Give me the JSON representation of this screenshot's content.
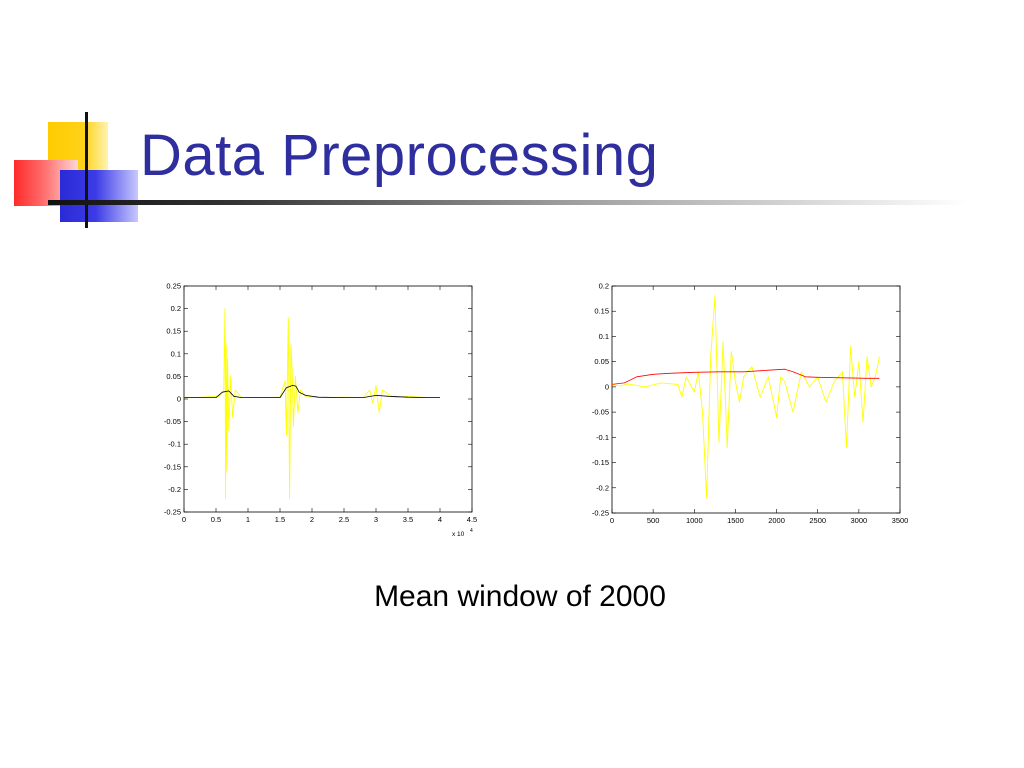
{
  "slide": {
    "title": "Data Preprocessing",
    "caption": "Mean window of 2000"
  },
  "chart_data": [
    {
      "type": "line",
      "xlim": [
        0,
        45000
      ],
      "ylim": [
        -0.25,
        0.25
      ],
      "x_tick_labels": [
        "0",
        "0.5",
        "1",
        "1.5",
        "2",
        "2.5",
        "3",
        "3.5",
        "4",
        "4.5"
      ],
      "x_tick_values": [
        0,
        5000,
        10000,
        15000,
        20000,
        25000,
        30000,
        35000,
        40000,
        45000
      ],
      "x_exponent_label": "x 10",
      "x_exponent_power": "4",
      "y_tick_labels": [
        "0.25",
        "0.2",
        "0.15",
        "0.1",
        "0.05",
        "0",
        "-0.05",
        "-0.1",
        "-0.15",
        "-0.2",
        "-0.25"
      ],
      "y_tick_values": [
        0.25,
        0.2,
        0.15,
        0.1,
        0.05,
        0,
        -0.05,
        -0.1,
        -0.15,
        -0.2,
        -0.25
      ],
      "grid": false,
      "series": [
        {
          "color": "#ffff00",
          "x": [
            0,
            2000,
            4000,
            5500,
            6200,
            6400,
            6500,
            6600,
            6700,
            6800,
            7000,
            7300,
            7600,
            8000,
            9000,
            12000,
            15000,
            15800,
            16000,
            16300,
            16500,
            16700,
            16900,
            17100,
            17400,
            17800,
            18200,
            19000,
            21000,
            25000,
            28000,
            29000,
            29500,
            30000,
            30500,
            31000,
            32000,
            33000,
            35000,
            38000,
            40000
          ],
          "y": [
            0.004,
            0.003,
            0.005,
            0.006,
            0.02,
            0.2,
            -0.22,
            0.12,
            -0.16,
            0.09,
            -0.07,
            0.05,
            -0.04,
            0.02,
            0.003,
            0.003,
            0.004,
            0.04,
            -0.08,
            0.18,
            -0.22,
            0.12,
            0.06,
            -0.06,
            0.05,
            -0.03,
            0.02,
            0.005,
            0.003,
            0.004,
            0.003,
            0.02,
            -0.01,
            0.03,
            -0.03,
            0.02,
            0.01,
            0.003,
            0.006,
            0.003,
            0.003
          ]
        },
        {
          "color": "#000000",
          "x": [
            0,
            5000,
            6000,
            7000,
            7800,
            9000,
            12000,
            15000,
            16000,
            17000,
            17500,
            18000,
            19000,
            21000,
            25000,
            28000,
            30000,
            32000,
            35000,
            38000,
            40000
          ],
          "y": [
            0.003,
            0.003,
            0.015,
            0.018,
            0.006,
            0.003,
            0.003,
            0.003,
            0.025,
            0.03,
            0.028,
            0.015,
            0.008,
            0.004,
            0.003,
            0.003,
            0.008,
            0.006,
            0.004,
            0.003,
            0.003
          ]
        }
      ]
    },
    {
      "type": "line",
      "xlim": [
        0,
        3500
      ],
      "ylim": [
        -0.25,
        0.2
      ],
      "x_tick_labels": [
        "0",
        "500",
        "1000",
        "1500",
        "2000",
        "2500",
        "3000",
        "3500"
      ],
      "x_tick_values": [
        0,
        500,
        1000,
        1500,
        2000,
        2500,
        3000,
        3500
      ],
      "y_tick_labels": [
        "0.2",
        "0.15",
        "0.1",
        "0.05",
        "0",
        "-0.05",
        "-0.1",
        "-0.15",
        "-0.2",
        "-0.25"
      ],
      "y_tick_values": [
        0.2,
        0.15,
        0.1,
        0.05,
        0,
        -0.05,
        -0.1,
        -0.15,
        -0.2,
        -0.25
      ],
      "grid": false,
      "series": [
        {
          "color": "#ffff00",
          "x": [
            0,
            100,
            200,
            400,
            600,
            800,
            850,
            900,
            1000,
            1050,
            1100,
            1150,
            1200,
            1250,
            1300,
            1350,
            1400,
            1450,
            1500,
            1550,
            1600,
            1700,
            1800,
            1900,
            2000,
            2050,
            2100,
            2200,
            2300,
            2400,
            2500,
            2600,
            2700,
            2800,
            2850,
            2900,
            2950,
            3000,
            3050,
            3100,
            3150,
            3200,
            3250
          ],
          "y": [
            0.005,
            0.002,
            0.006,
            0.0,
            0.008,
            0.005,
            -0.02,
            0.02,
            -0.01,
            0.03,
            -0.05,
            -0.22,
            0.06,
            0.18,
            -0.11,
            0.09,
            -0.12,
            0.07,
            0.01,
            -0.03,
            0.02,
            0.04,
            -0.02,
            0.02,
            -0.06,
            0.02,
            0.01,
            -0.05,
            0.03,
            0.0,
            0.02,
            -0.03,
            0.01,
            0.03,
            -0.12,
            0.08,
            -0.02,
            0.05,
            -0.07,
            0.06,
            0.0,
            0.02,
            0.06
          ]
        },
        {
          "color": "#ff0000",
          "x": [
            0,
            150,
            300,
            500,
            700,
            1000,
            1300,
            1600,
            1900,
            2100,
            2200,
            2350,
            2500,
            2800,
            3100,
            3250
          ],
          "y": [
            0.005,
            0.008,
            0.02,
            0.025,
            0.027,
            0.029,
            0.03,
            0.03,
            0.033,
            0.035,
            0.03,
            0.02,
            0.019,
            0.018,
            0.017,
            0.017
          ]
        }
      ]
    }
  ]
}
